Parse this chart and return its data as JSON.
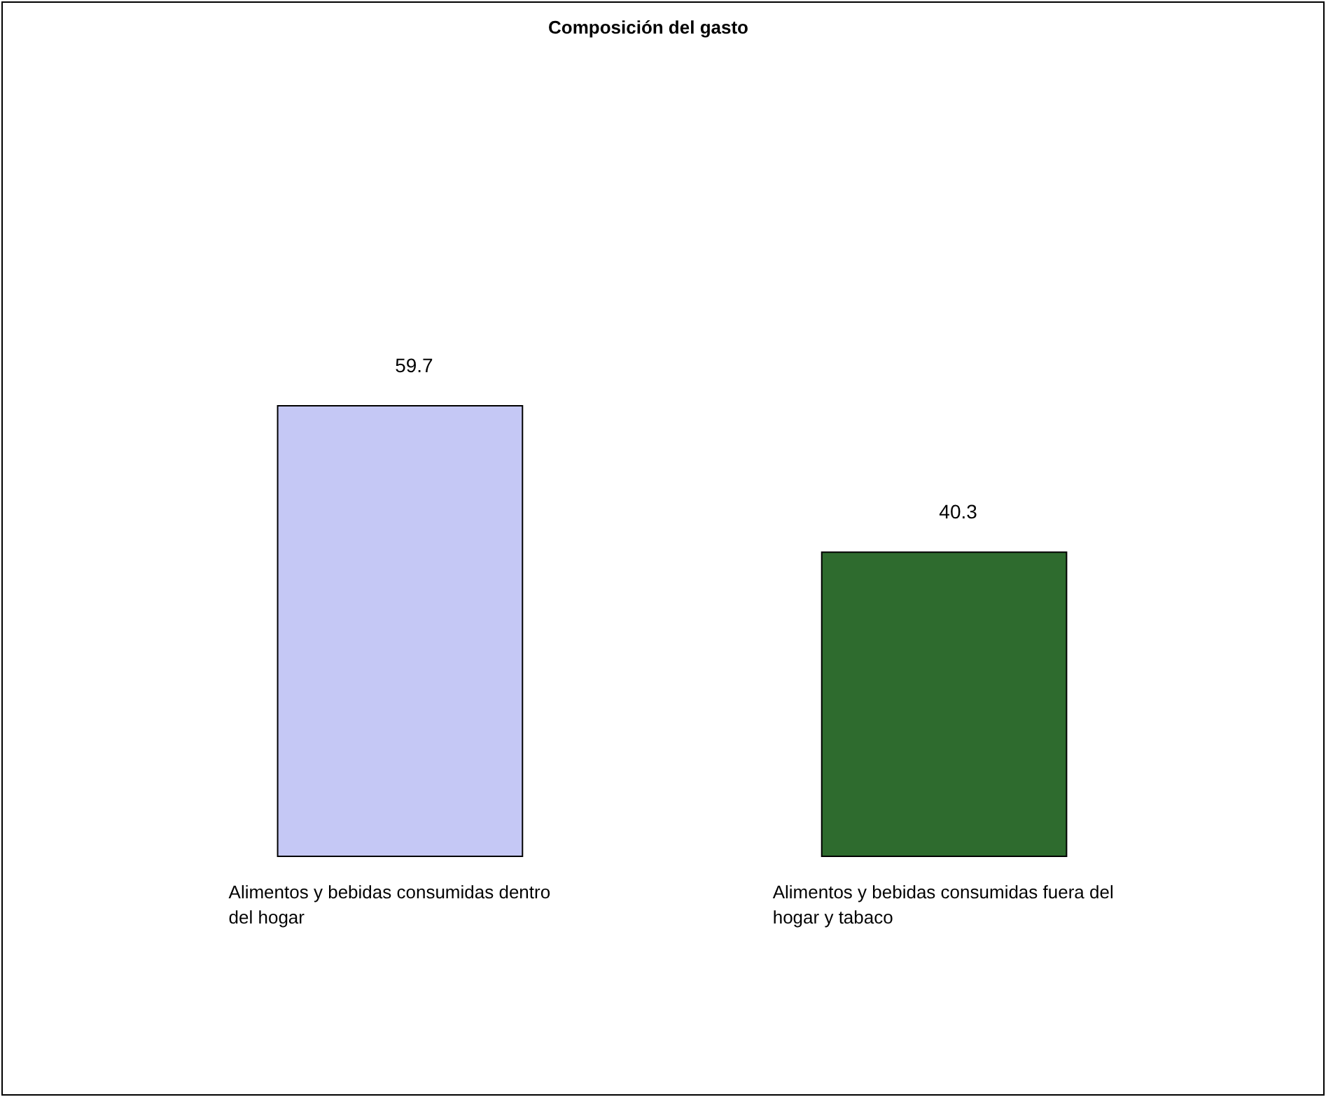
{
  "chart_data": {
    "type": "bar",
    "title": "Composición del gasto",
    "categories": [
      "Alimentos y bebidas consumidas dentro del hogar",
      "Alimentos y bebidas consumidas fuera del hogar y tabaco"
    ],
    "values": [
      59.7,
      40.3
    ],
    "colors": [
      "#c5c8f5",
      "#2e6b2e"
    ],
    "data_labels": true
  }
}
